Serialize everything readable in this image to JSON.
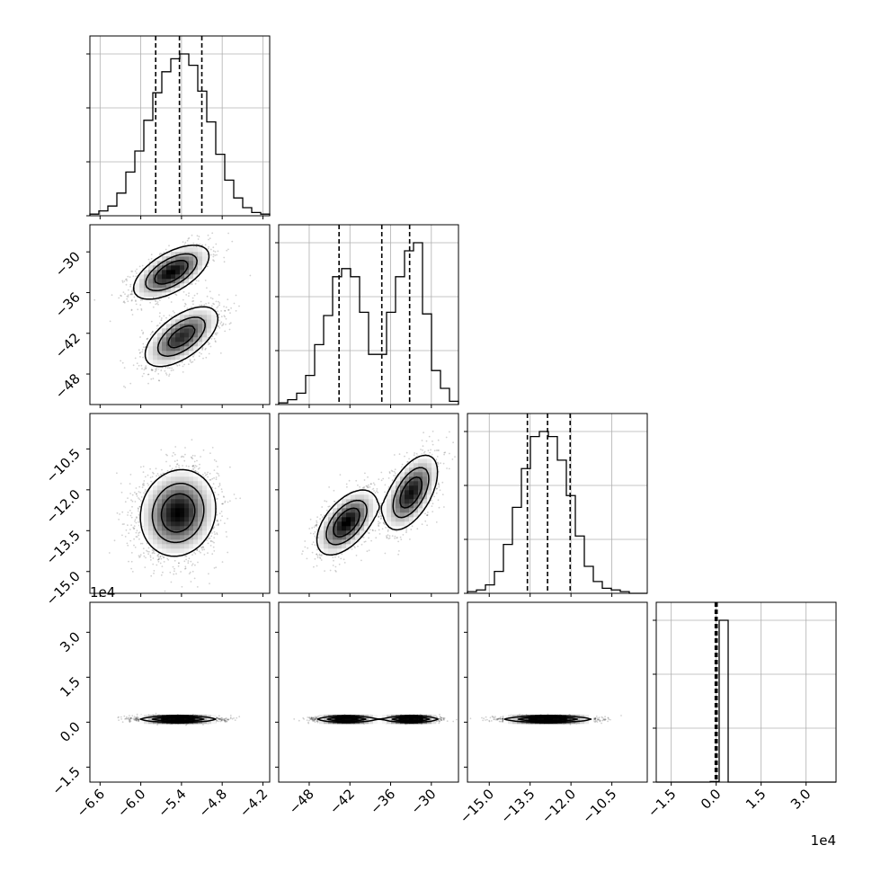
{
  "chart_data": {
    "type": "corner",
    "title": "",
    "grid": true,
    "parameters": [
      {
        "id": "p0",
        "range": [
          -6.75,
          -4.1
        ],
        "ticks": [
          -6.6,
          -6.0,
          -5.4,
          -4.8,
          -4.2
        ],
        "tick_labels": [
          "−6.6",
          "−6.0",
          "−5.4",
          "−4.8",
          "−4.2"
        ],
        "offset_label": "",
        "quantiles": [
          -5.78,
          -5.43,
          -5.1
        ],
        "histogram": {
          "bin_start": -6.75,
          "bin_width": 0.1325,
          "counts": [
            0.01,
            0.03,
            0.06,
            0.14,
            0.27,
            0.4,
            0.59,
            0.76,
            0.89,
            0.97,
            1.0,
            0.93,
            0.77,
            0.58,
            0.38,
            0.22,
            0.11,
            0.05,
            0.02,
            0.01
          ]
        }
      },
      {
        "id": "p1",
        "range": [
          -52.5,
          -26.0
        ],
        "ticks": [
          -48,
          -42,
          -36,
          -30
        ],
        "tick_labels": [
          "−48",
          "−42",
          "−36",
          "−30"
        ],
        "offset_label": "",
        "quantiles": [
          -43.6,
          -37.3,
          -33.2
        ],
        "histogram": {
          "bin_start": -52.5,
          "bin_width": 1.325,
          "counts": [
            0.01,
            0.03,
            0.07,
            0.18,
            0.37,
            0.55,
            0.79,
            0.84,
            0.79,
            0.57,
            0.31,
            0.31,
            0.57,
            0.79,
            0.95,
            1.0,
            0.56,
            0.21,
            0.1,
            0.02
          ]
        }
      },
      {
        "id": "p2",
        "range": [
          -15.8,
          -9.2
        ],
        "ticks": [
          -15.0,
          -13.5,
          -12.0,
          -10.5
        ],
        "tick_labels": [
          "−15.0",
          "−13.5",
          "−12.0",
          "−10.5"
        ],
        "offset_label": "",
        "quantiles": [
          -13.6,
          -12.86,
          -12.03
        ],
        "histogram": {
          "bin_start": -15.8,
          "bin_width": 0.33,
          "counts": [
            0.01,
            0.02,
            0.05,
            0.13,
            0.29,
            0.51,
            0.74,
            0.93,
            0.96,
            0.93,
            0.79,
            0.58,
            0.34,
            0.16,
            0.07,
            0.03,
            0.02,
            0.01,
            0.0,
            0.0
          ]
        }
      },
      {
        "id": "p3",
        "range": [
          -2.0,
          4.0
        ],
        "ticks": [
          -1.5,
          0.0,
          1.5,
          3.0
        ],
        "tick_labels": [
          "−1.5",
          "0.0",
          "1.5",
          "3.0"
        ],
        "offset_label": "1e4",
        "quantiles": [
          -0.03,
          0.0,
          0.03
        ],
        "histogram": {
          "bin_start": -2.0,
          "bin_width": 0.3,
          "counts": [
            0,
            0,
            0,
            0,
            0,
            0,
            0.003,
            1.0,
            0,
            0,
            0,
            0,
            0,
            0,
            0,
            0,
            0,
            0,
            0,
            0
          ]
        }
      }
    ],
    "pairs": [
      {
        "x": "p0",
        "y": "p1",
        "components": [
          {
            "weight": 0.5,
            "mean": [
              -5.55,
              -33.0
            ],
            "sd": [
              0.28,
              2.0
            ],
            "rho": 0.6
          },
          {
            "weight": 0.5,
            "mean": [
              -5.4,
              -42.5
            ],
            "sd": [
              0.28,
              2.3
            ],
            "rho": 0.6
          }
        ]
      },
      {
        "x": "p0",
        "y": "p2",
        "components": [
          {
            "weight": 1.0,
            "mean": [
              -5.45,
              -12.85
            ],
            "sd": [
              0.28,
              0.8
            ],
            "rho": 0.1
          }
        ]
      },
      {
        "x": "p1",
        "y": "p2",
        "components": [
          {
            "weight": 0.5,
            "mean": [
              -42.5,
              -13.2
            ],
            "sd": [
              2.2,
              0.6
            ],
            "rho": 0.55
          },
          {
            "weight": 0.5,
            "mean": [
              -33.0,
              -12.1
            ],
            "sd": [
              2.0,
              0.7
            ],
            "rho": 0.55
          }
        ]
      },
      {
        "x": "p0",
        "y": "p3",
        "components": [
          {
            "weight": 1.0,
            "mean": [
              -5.45,
              0.1
            ],
            "sd": [
              0.28,
              0.05
            ],
            "rho": 0.0
          }
        ]
      },
      {
        "x": "p1",
        "y": "p3",
        "components": [
          {
            "weight": 0.5,
            "mean": [
              -42.5,
              0.1
            ],
            "sd": [
              2.2,
              0.05
            ],
            "rho": 0.0
          },
          {
            "weight": 0.5,
            "mean": [
              -33.0,
              0.1
            ],
            "sd": [
              2.0,
              0.05
            ],
            "rho": 0.0
          }
        ]
      },
      {
        "x": "p2",
        "y": "p3",
        "components": [
          {
            "weight": 1.0,
            "mean": [
              -12.85,
              0.1
            ],
            "sd": [
              0.8,
              0.05
            ],
            "rho": 0.0
          }
        ]
      }
    ]
  }
}
